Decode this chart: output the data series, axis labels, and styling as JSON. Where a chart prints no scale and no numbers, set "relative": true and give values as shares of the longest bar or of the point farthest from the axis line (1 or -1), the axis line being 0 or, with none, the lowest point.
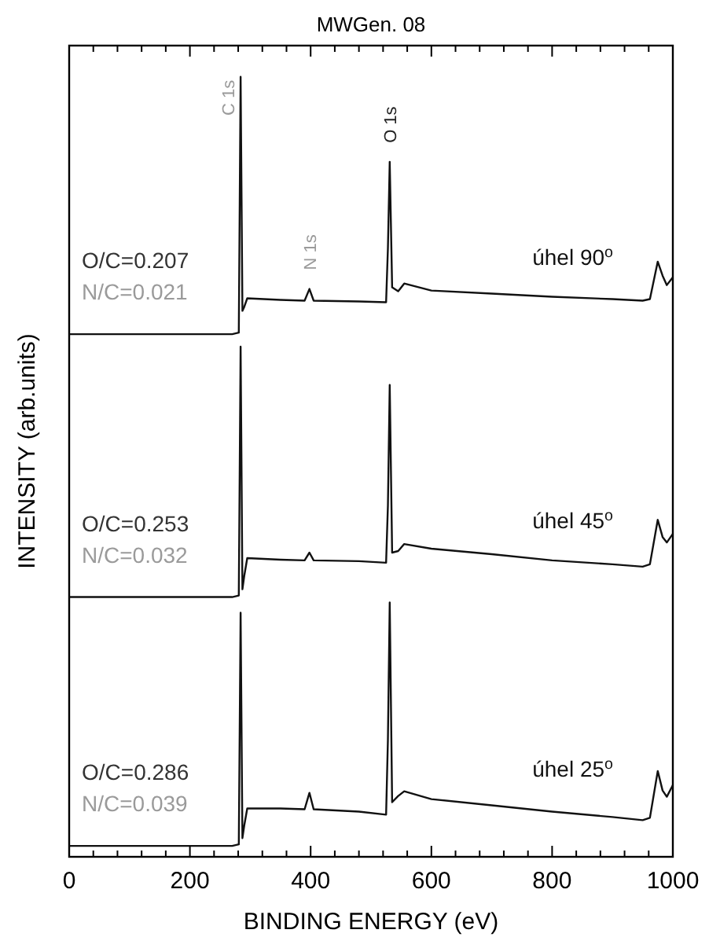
{
  "chart_data": {
    "type": "line",
    "title": "MWGen. 08",
    "xlabel": "BINDING ENERGY (eV)",
    "ylabel": "INTENSITY (arb.units)",
    "relative": true,
    "xlim": [
      0,
      1000
    ],
    "xticks": [
      0,
      {
        "value": 40,
        "label": null
      },
      {
        "value": 80,
        "label": null
      },
      {
        "value": 120,
        "label": null
      },
      {
        "value": 160,
        "label": null
      },
      200,
      {
        "value": 240,
        "label": null
      },
      {
        "value": 280,
        "label": null
      },
      {
        "value": 320,
        "label": null
      },
      {
        "value": 360,
        "label": null
      },
      400,
      {
        "value": 440,
        "label": null
      },
      {
        "value": 480,
        "label": null
      },
      {
        "value": 520,
        "label": null
      },
      {
        "value": 560,
        "label": null
      },
      600,
      {
        "value": 640,
        "label": null
      },
      {
        "value": 680,
        "label": null
      },
      {
        "value": 720,
        "label": null
      },
      {
        "value": 760,
        "label": null
      },
      800,
      {
        "value": 840,
        "label": null
      },
      {
        "value": 880,
        "label": null
      },
      {
        "value": 920,
        "label": null
      },
      {
        "value": 960,
        "label": null
      },
      1000
    ],
    "tick_labels": "x",
    "grid": false,
    "marker": "none",
    "line_style": "solid",
    "x": [
      0,
      270,
      281,
      284,
      287,
      290,
      295,
      350,
      390,
      398,
      405,
      480,
      525,
      528,
      531,
      535,
      545,
      555,
      600,
      700,
      800,
      900,
      950,
      962,
      975,
      983,
      990,
      1000
    ],
    "series": [
      {
        "color": "#111111",
        "values": [
          0.67,
          0.67,
          0.672,
          1.0,
          0.7,
          0.705,
          0.716,
          0.714,
          0.713,
          0.728,
          0.713,
          0.712,
          0.711,
          0.78,
          0.891,
          0.73,
          0.725,
          0.735,
          0.726,
          0.722,
          0.718,
          0.715,
          0.713,
          0.715,
          0.763,
          0.745,
          0.733,
          0.743
        ]
      },
      {
        "color": "#111111",
        "values": [
          0.333,
          0.333,
          0.335,
          0.654,
          0.343,
          0.36,
          0.383,
          0.381,
          0.38,
          0.39,
          0.38,
          0.379,
          0.377,
          0.45,
          0.605,
          0.39,
          0.392,
          0.401,
          0.395,
          0.388,
          0.38,
          0.375,
          0.372,
          0.375,
          0.432,
          0.41,
          0.403,
          0.414
        ]
      },
      {
        "color": "#111111",
        "values": [
          0.014,
          0.014,
          0.016,
          0.313,
          0.024,
          0.04,
          0.062,
          0.062,
          0.061,
          0.082,
          0.061,
          0.058,
          0.054,
          0.15,
          0.326,
          0.07,
          0.078,
          0.084,
          0.074,
          0.066,
          0.058,
          0.051,
          0.047,
          0.05,
          0.11,
          0.085,
          0.077,
          0.092
        ]
      }
    ],
    "annotations": [
      {
        "text": "C 1s",
        "x": 284,
        "y": 1.0
      },
      {
        "text": "O 1s",
        "x": 531,
        "y": 0.891
      },
      {
        "text": "N 1s",
        "x": 398,
        "y": 0.728
      },
      "O/C=0.207",
      "N/C=0.021",
      "úhel 90$^{o}$",
      "O/C=0.253",
      "N/C=0.032",
      "úhel 45$^{o}$",
      "O/C=0.286",
      "N/C=0.039",
      "úhel 25$^{o}$"
    ]
  }
}
